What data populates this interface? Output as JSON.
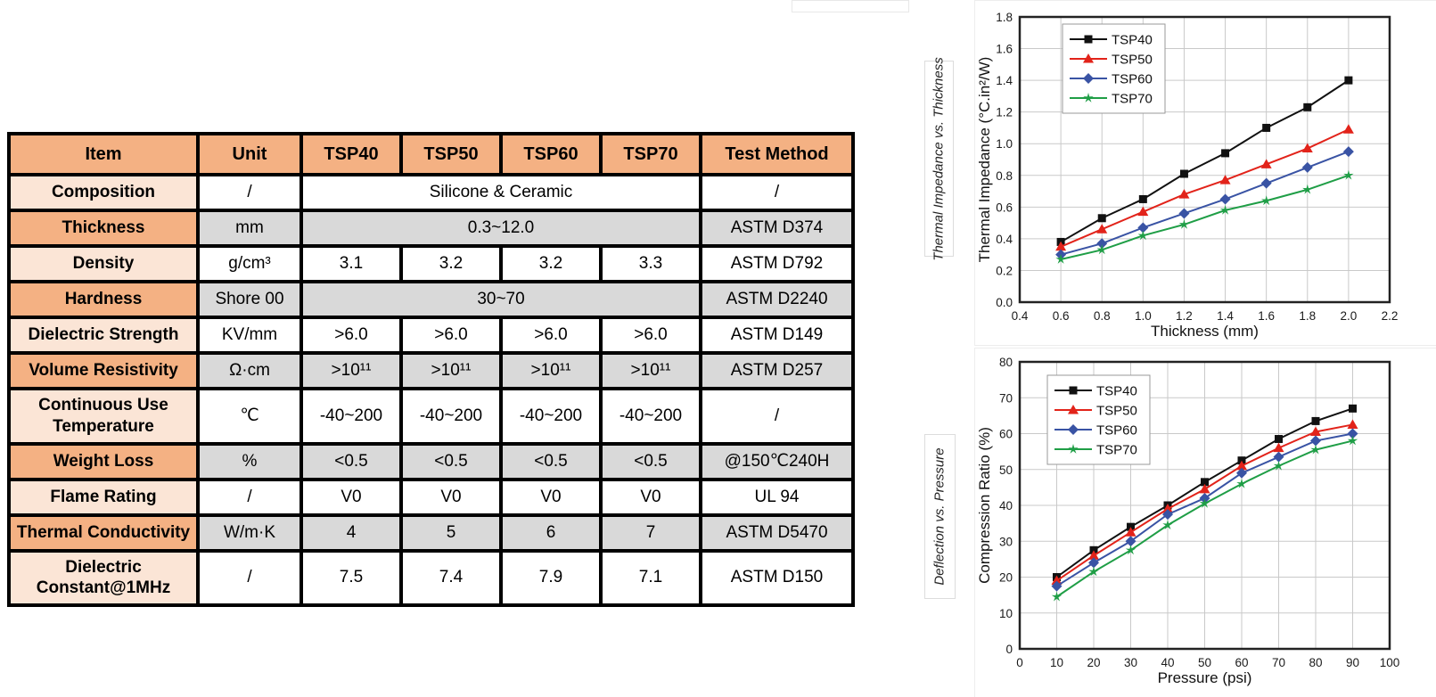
{
  "table": {
    "headers": [
      "Item",
      "Unit",
      "TSP40",
      "TSP50",
      "TSP60",
      "TSP70",
      "Test Method"
    ],
    "rows": [
      {
        "item": "Composition",
        "unit": "/",
        "merged_value": "Silicone & Ceramic",
        "test": "/"
      },
      {
        "item": "Thickness",
        "unit": "mm",
        "merged_value": "0.3~12.0",
        "test": "ASTM D374"
      },
      {
        "item": "Density",
        "unit": "g/cm³",
        "values": [
          "3.1",
          "3.2",
          "3.2",
          "3.3"
        ],
        "test": "ASTM D792"
      },
      {
        "item": "Hardness",
        "unit": "Shore 00",
        "merged_value": "30~70",
        "test": "ASTM D2240"
      },
      {
        "item": "Dielectric Strength",
        "unit": "KV/mm",
        "values": [
          ">6.0",
          ">6.0",
          ">6.0",
          ">6.0"
        ],
        "test": "ASTM D149"
      },
      {
        "item": "Volume Resistivity",
        "unit": "Ω·cm",
        "values": [
          ">10¹¹",
          ">10¹¹",
          ">10¹¹",
          ">10¹¹"
        ],
        "test": "ASTM D257"
      },
      {
        "item": "Continuous Use Temperature",
        "unit": "℃",
        "values": [
          "-40~200",
          "-40~200",
          "-40~200",
          "-40~200"
        ],
        "test": "/"
      },
      {
        "item": "Weight Loss",
        "unit": "%",
        "values": [
          "<0.5",
          "<0.5",
          "<0.5",
          "<0.5"
        ],
        "test": "@150℃240H"
      },
      {
        "item": "Flame Rating",
        "unit": "/",
        "values": [
          "V0",
          "V0",
          "V0",
          "V0"
        ],
        "test": "UL 94"
      },
      {
        "item": "Thermal Conductivity",
        "unit": "W/m·K",
        "values": [
          "4",
          "5",
          "6",
          "7"
        ],
        "test": "ASTM D5470"
      },
      {
        "item": "Dielectric Constant@1MHz",
        "unit": "/",
        "values": [
          "7.5",
          "7.4",
          "7.9",
          "7.1"
        ],
        "test": "ASTM D150"
      }
    ],
    "colors": {
      "header_bg": "#F4B183",
      "item_row_light": "#FBE5D6",
      "item_row_dark": "#F4B183",
      "cell_gray": "#D9D9D9",
      "cell_white": "#FFFFFF",
      "border": "#000000"
    }
  },
  "side_labels": {
    "top": "Thermal Impedance vs. Thickness",
    "bottom": "Deflection vs. Pressure"
  },
  "chart_data": [
    {
      "type": "line",
      "title": "Thermal Impedance vs. Thickness",
      "xlabel": "Thickness (mm)",
      "ylabel": "Thermal Impedance (°C.in²/W)",
      "x": [
        0.6,
        0.8,
        1.0,
        1.2,
        1.4,
        1.6,
        1.8,
        2.0
      ],
      "xlim": [
        0.4,
        2.2
      ],
      "ylim": [
        0,
        1.8
      ],
      "xticks": [
        "0.4",
        "0.6",
        "0.8",
        "1.0",
        "1.2",
        "1.4",
        "1.6",
        "1.8",
        "2.0",
        "2.2"
      ],
      "yticks": [
        "0.0",
        "0.2",
        "0.4",
        "0.6",
        "0.8",
        "1.0",
        "1.2",
        "1.4",
        "1.6",
        "1.8"
      ],
      "grid": true,
      "legend_position": "top-left",
      "series": [
        {
          "name": "TSP40",
          "color": "#111111",
          "marker": "square",
          "values": [
            0.38,
            0.53,
            0.65,
            0.81,
            0.94,
            1.1,
            1.23,
            1.4
          ]
        },
        {
          "name": "TSP50",
          "color": "#E2231A",
          "marker": "triangle",
          "values": [
            0.35,
            0.46,
            0.57,
            0.68,
            0.77,
            0.87,
            0.97,
            1.09
          ]
        },
        {
          "name": "TSP60",
          "color": "#3953A4",
          "marker": "diamond",
          "values": [
            0.3,
            0.37,
            0.47,
            0.56,
            0.65,
            0.75,
            0.85,
            0.95
          ]
        },
        {
          "name": "TSP70",
          "color": "#1F9E46",
          "marker": "star",
          "values": [
            0.27,
            0.33,
            0.42,
            0.49,
            0.58,
            0.64,
            0.71,
            0.8
          ]
        }
      ]
    },
    {
      "type": "line",
      "title": "Deflection vs. Pressure",
      "xlabel": "Pressure (psi)",
      "ylabel": "Compression Ratio (%)",
      "x": [
        10,
        20,
        30,
        40,
        50,
        60,
        70,
        80,
        90
      ],
      "xlim": [
        0,
        100
      ],
      "ylim": [
        0,
        80
      ],
      "xticks": [
        "0",
        "10",
        "20",
        "30",
        "40",
        "50",
        "60",
        "70",
        "80",
        "90",
        "100"
      ],
      "yticks": [
        "0",
        "10",
        "20",
        "30",
        "40",
        "50",
        "60",
        "70",
        "80"
      ],
      "grid": true,
      "legend_position": "top-left",
      "series": [
        {
          "name": "TSP40",
          "color": "#111111",
          "marker": "square",
          "values": [
            20,
            27.5,
            34,
            40,
            46.5,
            52.5,
            58.5,
            63.5,
            67
          ]
        },
        {
          "name": "TSP50",
          "color": "#E2231A",
          "marker": "triangle",
          "values": [
            19,
            26,
            32.5,
            39,
            44.5,
            51,
            56,
            60.5,
            62.5
          ]
        },
        {
          "name": "TSP60",
          "color": "#3953A4",
          "marker": "diamond",
          "values": [
            17.5,
            24,
            30,
            37.5,
            42,
            49,
            53.5,
            58,
            60
          ]
        },
        {
          "name": "TSP70",
          "color": "#1F9E46",
          "marker": "star",
          "values": [
            14.5,
            21.5,
            27.5,
            34.5,
            40.5,
            46,
            51,
            55.5,
            58
          ]
        }
      ]
    }
  ]
}
